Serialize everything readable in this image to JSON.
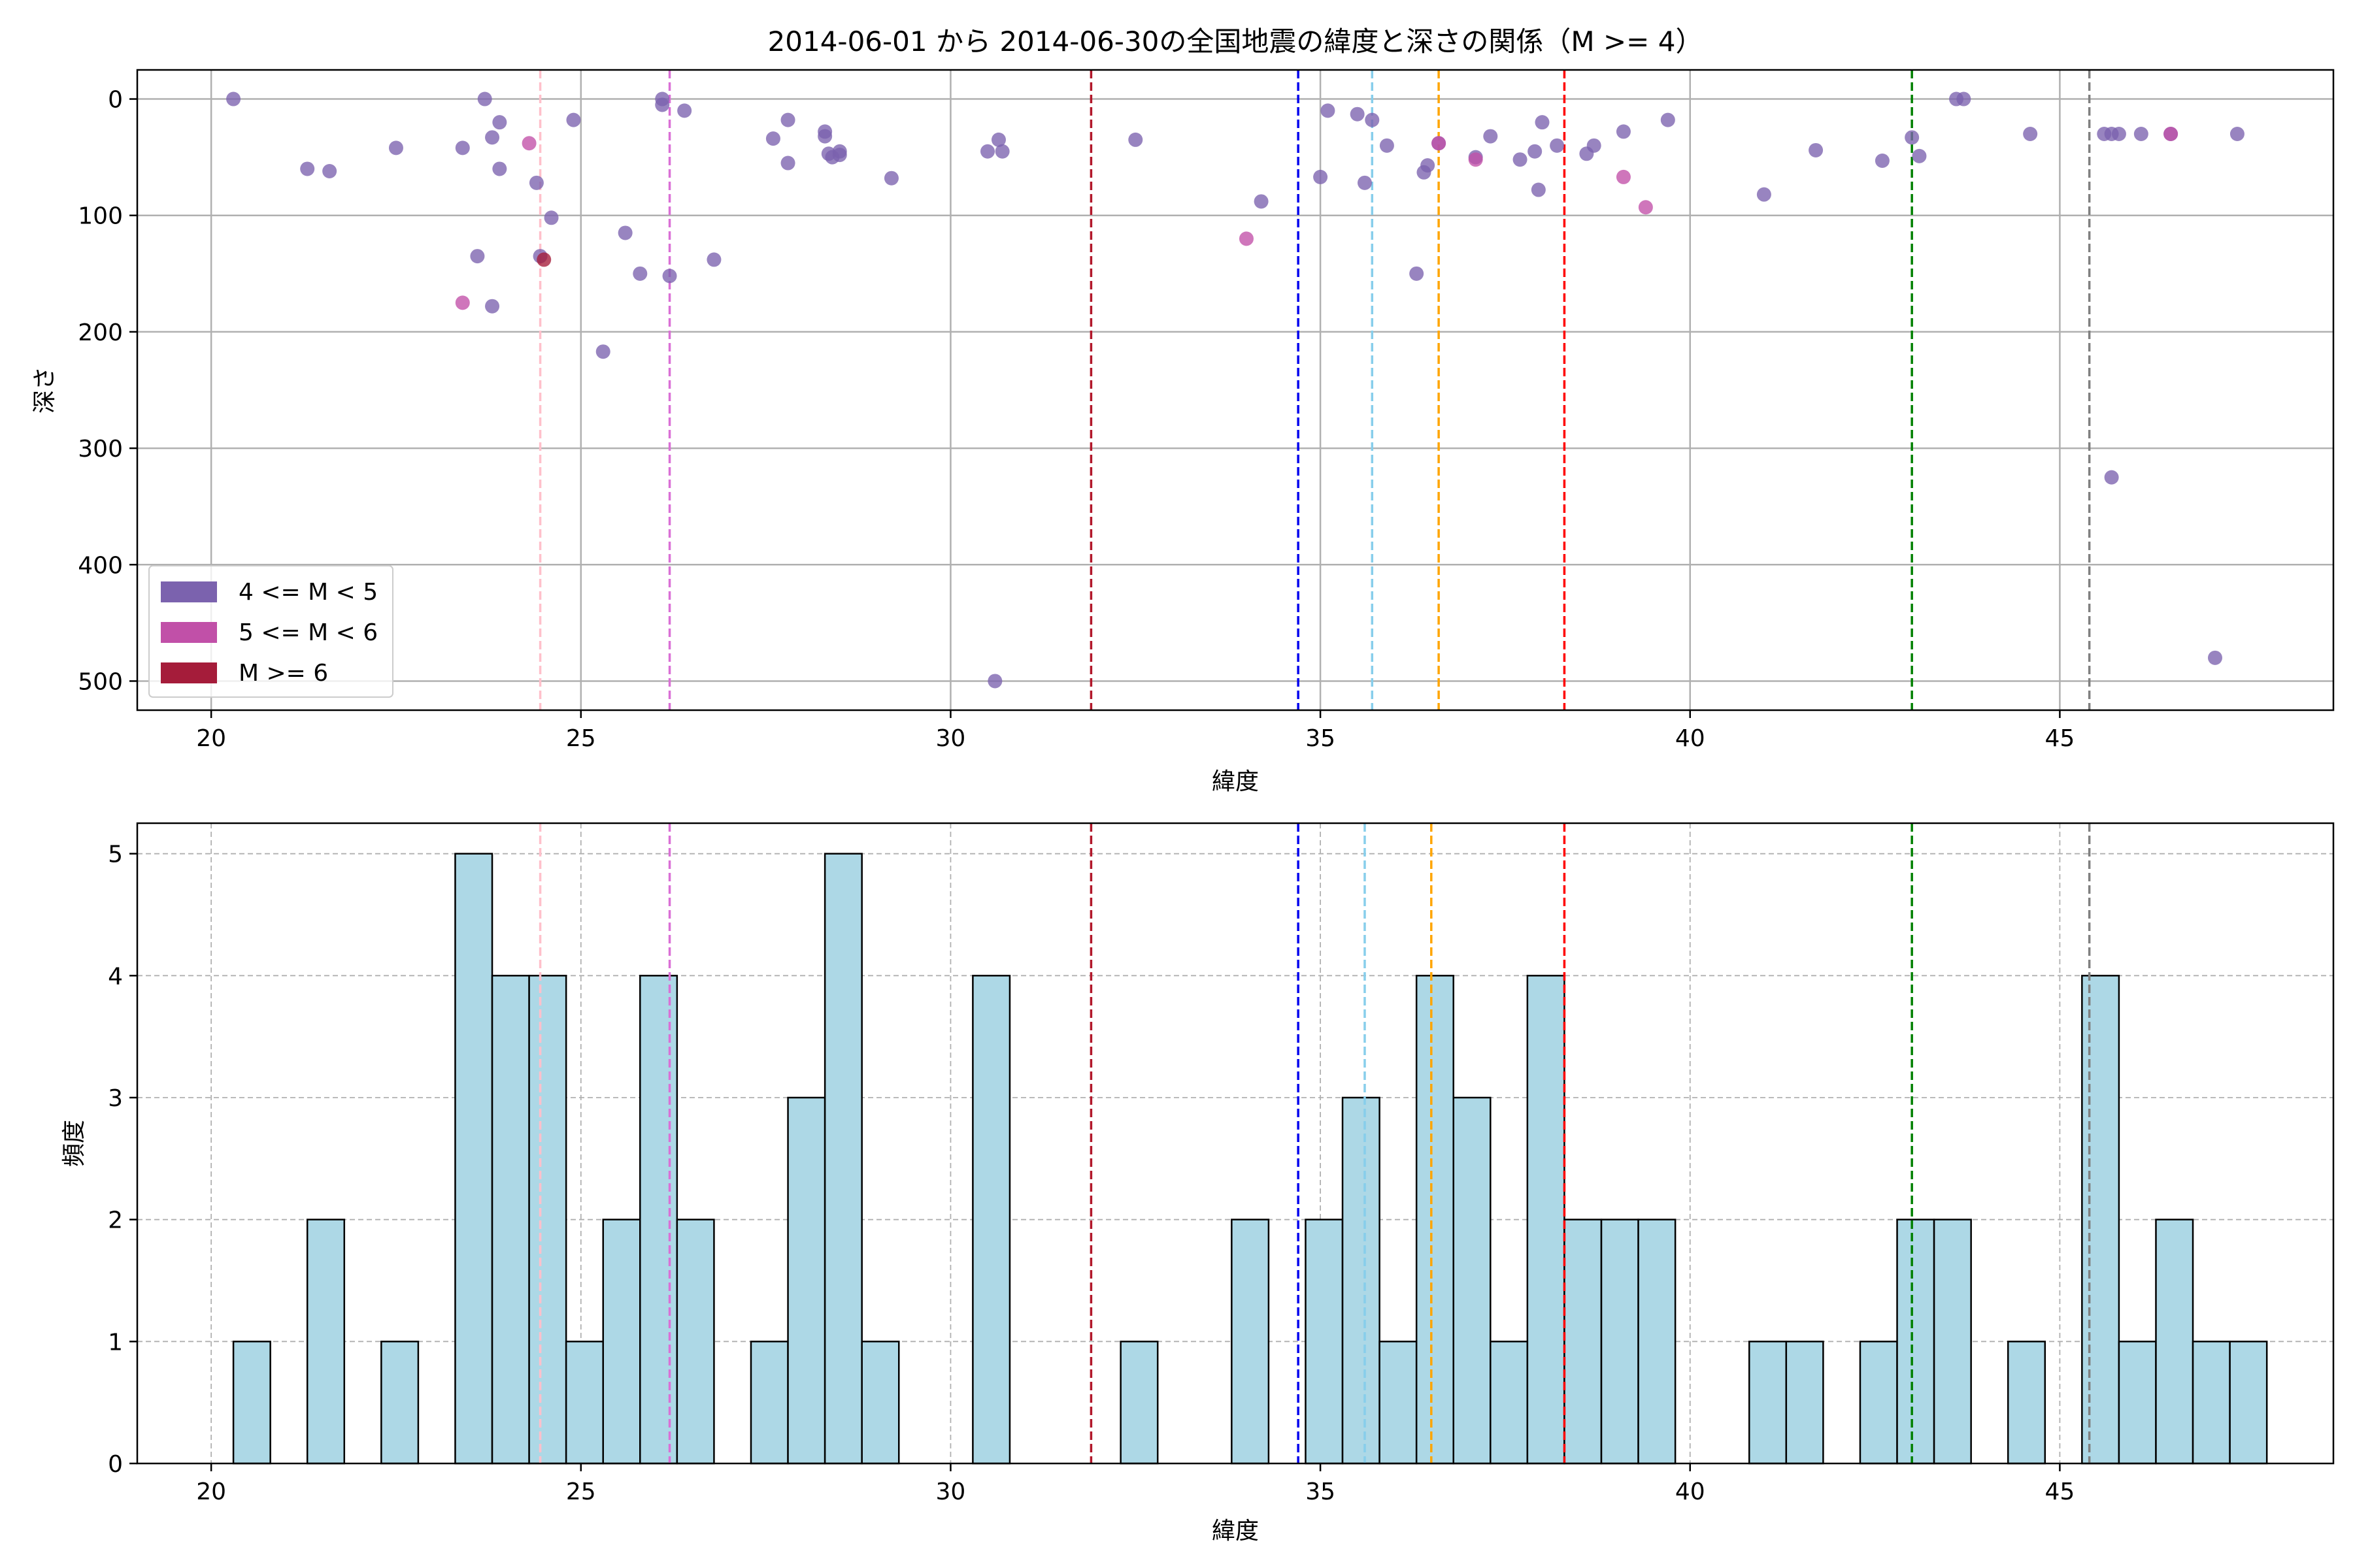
{
  "chart_data": [
    {
      "type": "scatter",
      "title": "2014-06-01 から 2014-06-30の全国地震の緯度と深さの関係（M >= 4）",
      "xlabel": "緯度",
      "ylabel": "深さ",
      "xlim": [
        19.0,
        48.7
      ],
      "ylim": [
        525,
        -25
      ],
      "y_inverted": true,
      "grid": true,
      "legend_position": "bottom-left",
      "xticks": [
        20,
        25,
        30,
        35,
        40,
        45
      ],
      "yticks": [
        0,
        100,
        200,
        300,
        400,
        500
      ],
      "vlines": [
        {
          "x": 24.45,
          "color": "#ffc0cb"
        },
        {
          "x": 26.2,
          "color": "#da70d6"
        },
        {
          "x": 31.9,
          "color": "#b2182b"
        },
        {
          "x": 34.7,
          "color": "#0000ee"
        },
        {
          "x": 35.7,
          "color": "#87ceeb"
        },
        {
          "x": 36.6,
          "color": "#ffa500"
        },
        {
          "x": 38.3,
          "color": "#ff0000"
        },
        {
          "x": 43.0,
          "color": "#008000"
        },
        {
          "x": 45.4,
          "color": "#808080"
        }
      ],
      "series": [
        {
          "name": "4 <= M < 5",
          "color": "#7b62ae",
          "points": [
            [
              20.3,
              0
            ],
            [
              21.3,
              60
            ],
            [
              21.6,
              62
            ],
            [
              22.5,
              42
            ],
            [
              23.4,
              42
            ],
            [
              23.6,
              135
            ],
            [
              23.7,
              0
            ],
            [
              23.8,
              178
            ],
            [
              23.8,
              33
            ],
            [
              23.9,
              60
            ],
            [
              23.9,
              20
            ],
            [
              24.4,
              72
            ],
            [
              24.45,
              135
            ],
            [
              24.6,
              102
            ],
            [
              24.9,
              18
            ],
            [
              25.3,
              217
            ],
            [
              25.6,
              115
            ],
            [
              25.8,
              150
            ],
            [
              26.1,
              0
            ],
            [
              26.1,
              5
            ],
            [
              26.2,
              152
            ],
            [
              26.4,
              10
            ],
            [
              26.8,
              138
            ],
            [
              27.6,
              34
            ],
            [
              27.8,
              55
            ],
            [
              27.8,
              18
            ],
            [
              28.3,
              28
            ],
            [
              28.3,
              32
            ],
            [
              28.35,
              47
            ],
            [
              28.4,
              50
            ],
            [
              28.5,
              45
            ],
            [
              28.5,
              48
            ],
            [
              29.2,
              68
            ],
            [
              30.5,
              45
            ],
            [
              30.6,
              500
            ],
            [
              30.65,
              35
            ],
            [
              30.7,
              45
            ],
            [
              32.5,
              35
            ],
            [
              34.2,
              88
            ],
            [
              35.0,
              67
            ],
            [
              35.1,
              10
            ],
            [
              35.5,
              13
            ],
            [
              35.6,
              72
            ],
            [
              35.7,
              18
            ],
            [
              35.9,
              40
            ],
            [
              36.3,
              150
            ],
            [
              36.4,
              63
            ],
            [
              36.45,
              57
            ],
            [
              36.6,
              38
            ],
            [
              37.1,
              50
            ],
            [
              37.3,
              32
            ],
            [
              37.7,
              52
            ],
            [
              37.9,
              45
            ],
            [
              37.95,
              78
            ],
            [
              38.0,
              20
            ],
            [
              38.2,
              40
            ],
            [
              38.6,
              47
            ],
            [
              38.7,
              40
            ],
            [
              39.1,
              28
            ],
            [
              39.7,
              18
            ],
            [
              41.0,
              82
            ],
            [
              41.7,
              44
            ],
            [
              42.6,
              53
            ],
            [
              43.0,
              33
            ],
            [
              43.1,
              49
            ],
            [
              43.6,
              0
            ],
            [
              43.7,
              0
            ],
            [
              44.6,
              30
            ],
            [
              45.6,
              30
            ],
            [
              45.7,
              30
            ],
            [
              45.7,
              325
            ],
            [
              45.8,
              30
            ],
            [
              46.1,
              30
            ],
            [
              46.5,
              30
            ],
            [
              47.1,
              480
            ],
            [
              47.4,
              30
            ]
          ]
        },
        {
          "name": "5 <= M < 6",
          "color": "#c150a8",
          "points": [
            [
              23.4,
              175
            ],
            [
              24.3,
              38
            ],
            [
              34.0,
              120
            ],
            [
              36.6,
              38
            ],
            [
              37.1,
              52
            ],
            [
              39.1,
              67
            ],
            [
              39.4,
              93
            ],
            [
              46.5,
              30
            ]
          ]
        },
        {
          "name": "M >= 6",
          "color": "#a51c3a",
          "points": [
            [
              24.5,
              138
            ]
          ]
        }
      ]
    },
    {
      "type": "bar",
      "xlabel": "緯度",
      "ylabel": "頻度",
      "xlim": [
        19.0,
        48.7
      ],
      "ylim": [
        0,
        5.25
      ],
      "grid": true,
      "xticks": [
        20,
        25,
        30,
        35,
        40,
        45
      ],
      "yticks": [
        0,
        1,
        2,
        3,
        4,
        5
      ],
      "bar_color": "#add8e6",
      "bin_width": 0.5,
      "bin_starts": [
        20.3,
        21.3,
        22.3,
        23.3,
        23.8,
        24.3,
        24.8,
        25.3,
        25.8,
        26.3,
        27.3,
        27.8,
        28.3,
        28.8,
        30.3,
        32.3,
        33.8,
        34.8,
        35.3,
        35.8,
        36.3,
        36.8,
        37.3,
        37.8,
        38.3,
        38.8,
        39.3,
        40.8,
        41.3,
        42.3,
        42.8,
        43.3,
        44.3,
        45.3,
        45.8,
        46.3,
        46.8,
        47.3
      ],
      "values": [
        1,
        2,
        1,
        5,
        4,
        4,
        1,
        2,
        4,
        2,
        1,
        3,
        5,
        1,
        4,
        1,
        2,
        2,
        3,
        1,
        4,
        3,
        1,
        4,
        2,
        2,
        2,
        1,
        1,
        1,
        2,
        2,
        1,
        4,
        1,
        2,
        1,
        1
      ],
      "vlines": [
        {
          "x": 24.45,
          "color": "#ffc0cb"
        },
        {
          "x": 26.2,
          "color": "#da70d6"
        },
        {
          "x": 31.9,
          "color": "#b2182b"
        },
        {
          "x": 34.7,
          "color": "#0000ee"
        },
        {
          "x": 35.6,
          "color": "#87ceeb"
        },
        {
          "x": 36.5,
          "color": "#ffa500"
        },
        {
          "x": 38.3,
          "color": "#ff0000"
        },
        {
          "x": 43.0,
          "color": "#008000"
        },
        {
          "x": 45.4,
          "color": "#808080"
        }
      ]
    }
  ]
}
